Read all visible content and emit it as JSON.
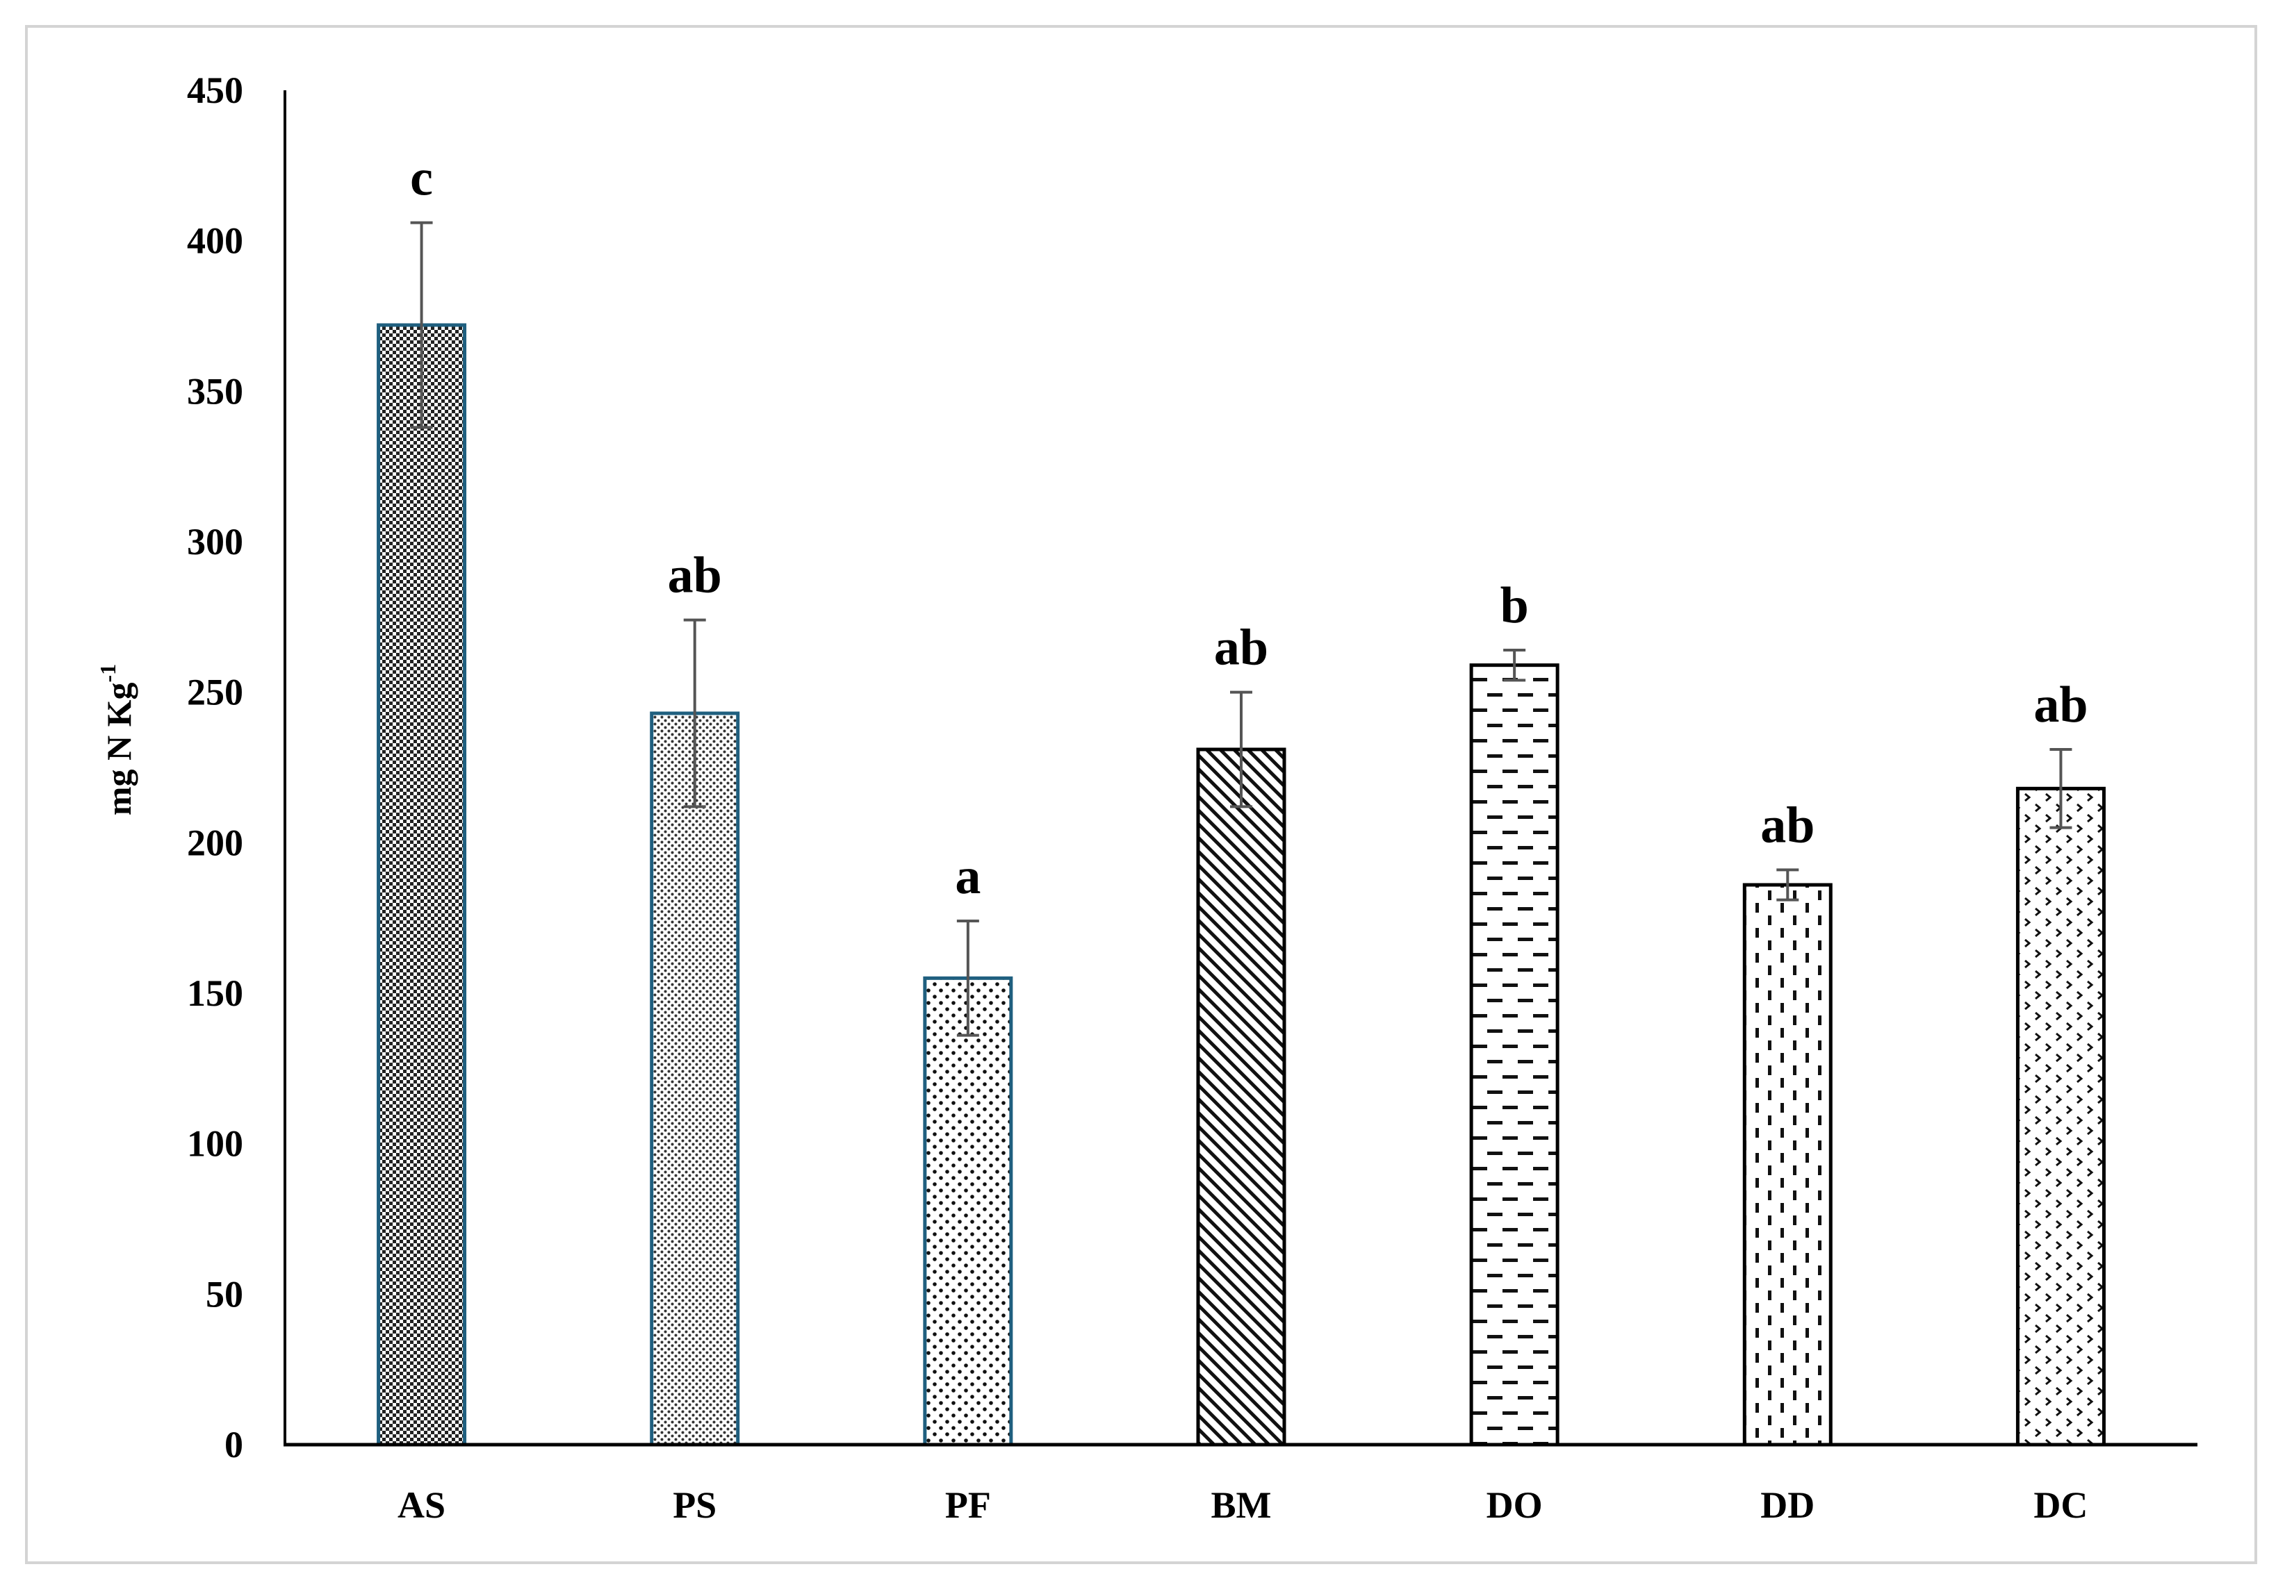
{
  "chart_data": {
    "type": "bar",
    "title": "",
    "xlabel": "",
    "ylabel": "mg N Kg",
    "ylabel_superscript": "-1",
    "categories": [
      "AS",
      "PS",
      "PF",
      "BM",
      "DO",
      "DD",
      "DC"
    ],
    "values": [
      372,
      243,
      155,
      231,
      259,
      186,
      218
    ],
    "error": [
      34,
      31,
      19,
      19,
      5,
      5,
      13
    ],
    "significance": [
      "c",
      "ab",
      "a",
      "ab",
      "b",
      "ab",
      "ab"
    ],
    "ylim": [
      0,
      450
    ],
    "yticks": [
      0,
      50,
      100,
      150,
      200,
      250,
      300,
      350,
      400,
      450
    ],
    "grid": false,
    "legend": "none",
    "bar_border_colors": [
      "#1f5f7f",
      "#1f5f7f",
      "#1f5f7f",
      "#000000",
      "#000000",
      "#000000",
      "#000000"
    ],
    "bar_patterns": [
      "dense-dots",
      "fine-dots",
      "sparse-dots",
      "diagonal-lines",
      "horizontal-dashes",
      "vertical-dashes",
      "chevrons"
    ],
    "error_bar_color": "#555555"
  }
}
